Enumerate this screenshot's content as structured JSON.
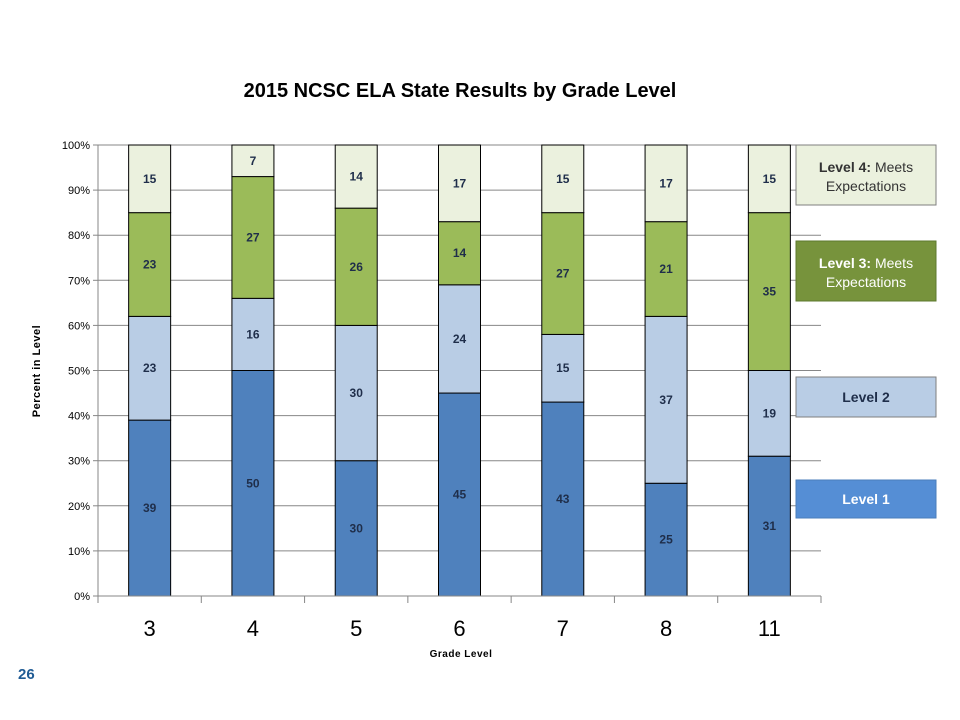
{
  "slide": {
    "number": "26"
  },
  "chart_data": {
    "type": "bar",
    "stacked": true,
    "title": "2015 NCSC ELA State Results by Grade Level",
    "xlabel": "Grade Level",
    "ylabel": "Percent in Level",
    "ylim": [
      0,
      100
    ],
    "yticks": [
      "0%",
      "10%",
      "20%",
      "30%",
      "40%",
      "50%",
      "60%",
      "70%",
      "80%",
      "90%",
      "100%"
    ],
    "categories": [
      "3",
      "4",
      "5",
      "6",
      "7",
      "8",
      "11"
    ],
    "grid": true,
    "legend_position": "right",
    "series": [
      {
        "name": "Level 1",
        "color": "#4F81BD",
        "label_color": "#1F2E4A",
        "values": [
          39,
          50,
          30,
          45,
          43,
          25,
          31
        ]
      },
      {
        "name": "Level 2",
        "color": "#B9CDE5",
        "label_color": "#1F2E4A",
        "values": [
          23,
          16,
          30,
          24,
          15,
          37,
          19
        ]
      },
      {
        "name": "Level 3: Meets Expectations",
        "color": "#9BBB59",
        "label_color": "#1F2E4A",
        "values": [
          23,
          27,
          26,
          14,
          27,
          21,
          35
        ]
      },
      {
        "name": "Level 4: Meets Expectations",
        "color": "#EBF1DE",
        "label_color": "#1F2E4A",
        "values": [
          15,
          7,
          14,
          17,
          15,
          17,
          15
        ]
      }
    ],
    "legend": [
      {
        "bold": "Level 4:",
        "rest": " Meets Expectations",
        "fill": "#EBF1DE",
        "border": "#7F7F7F",
        "text_color": "#333333"
      },
      {
        "bold": "Level 3:",
        "rest": " Meets Expectations",
        "fill": "#77933C",
        "border": "#5E7A2E",
        "text_color": "#ffffff"
      },
      {
        "bold": "Level 2",
        "rest": "",
        "fill": "#B9CDE5",
        "border": "#7F7F7F",
        "text_color": "#1F2E4A"
      },
      {
        "bold": "Level 1",
        "rest": "",
        "fill": "#558ED5",
        "border": "#4A7EBB",
        "text_color": "#ffffff"
      }
    ]
  }
}
